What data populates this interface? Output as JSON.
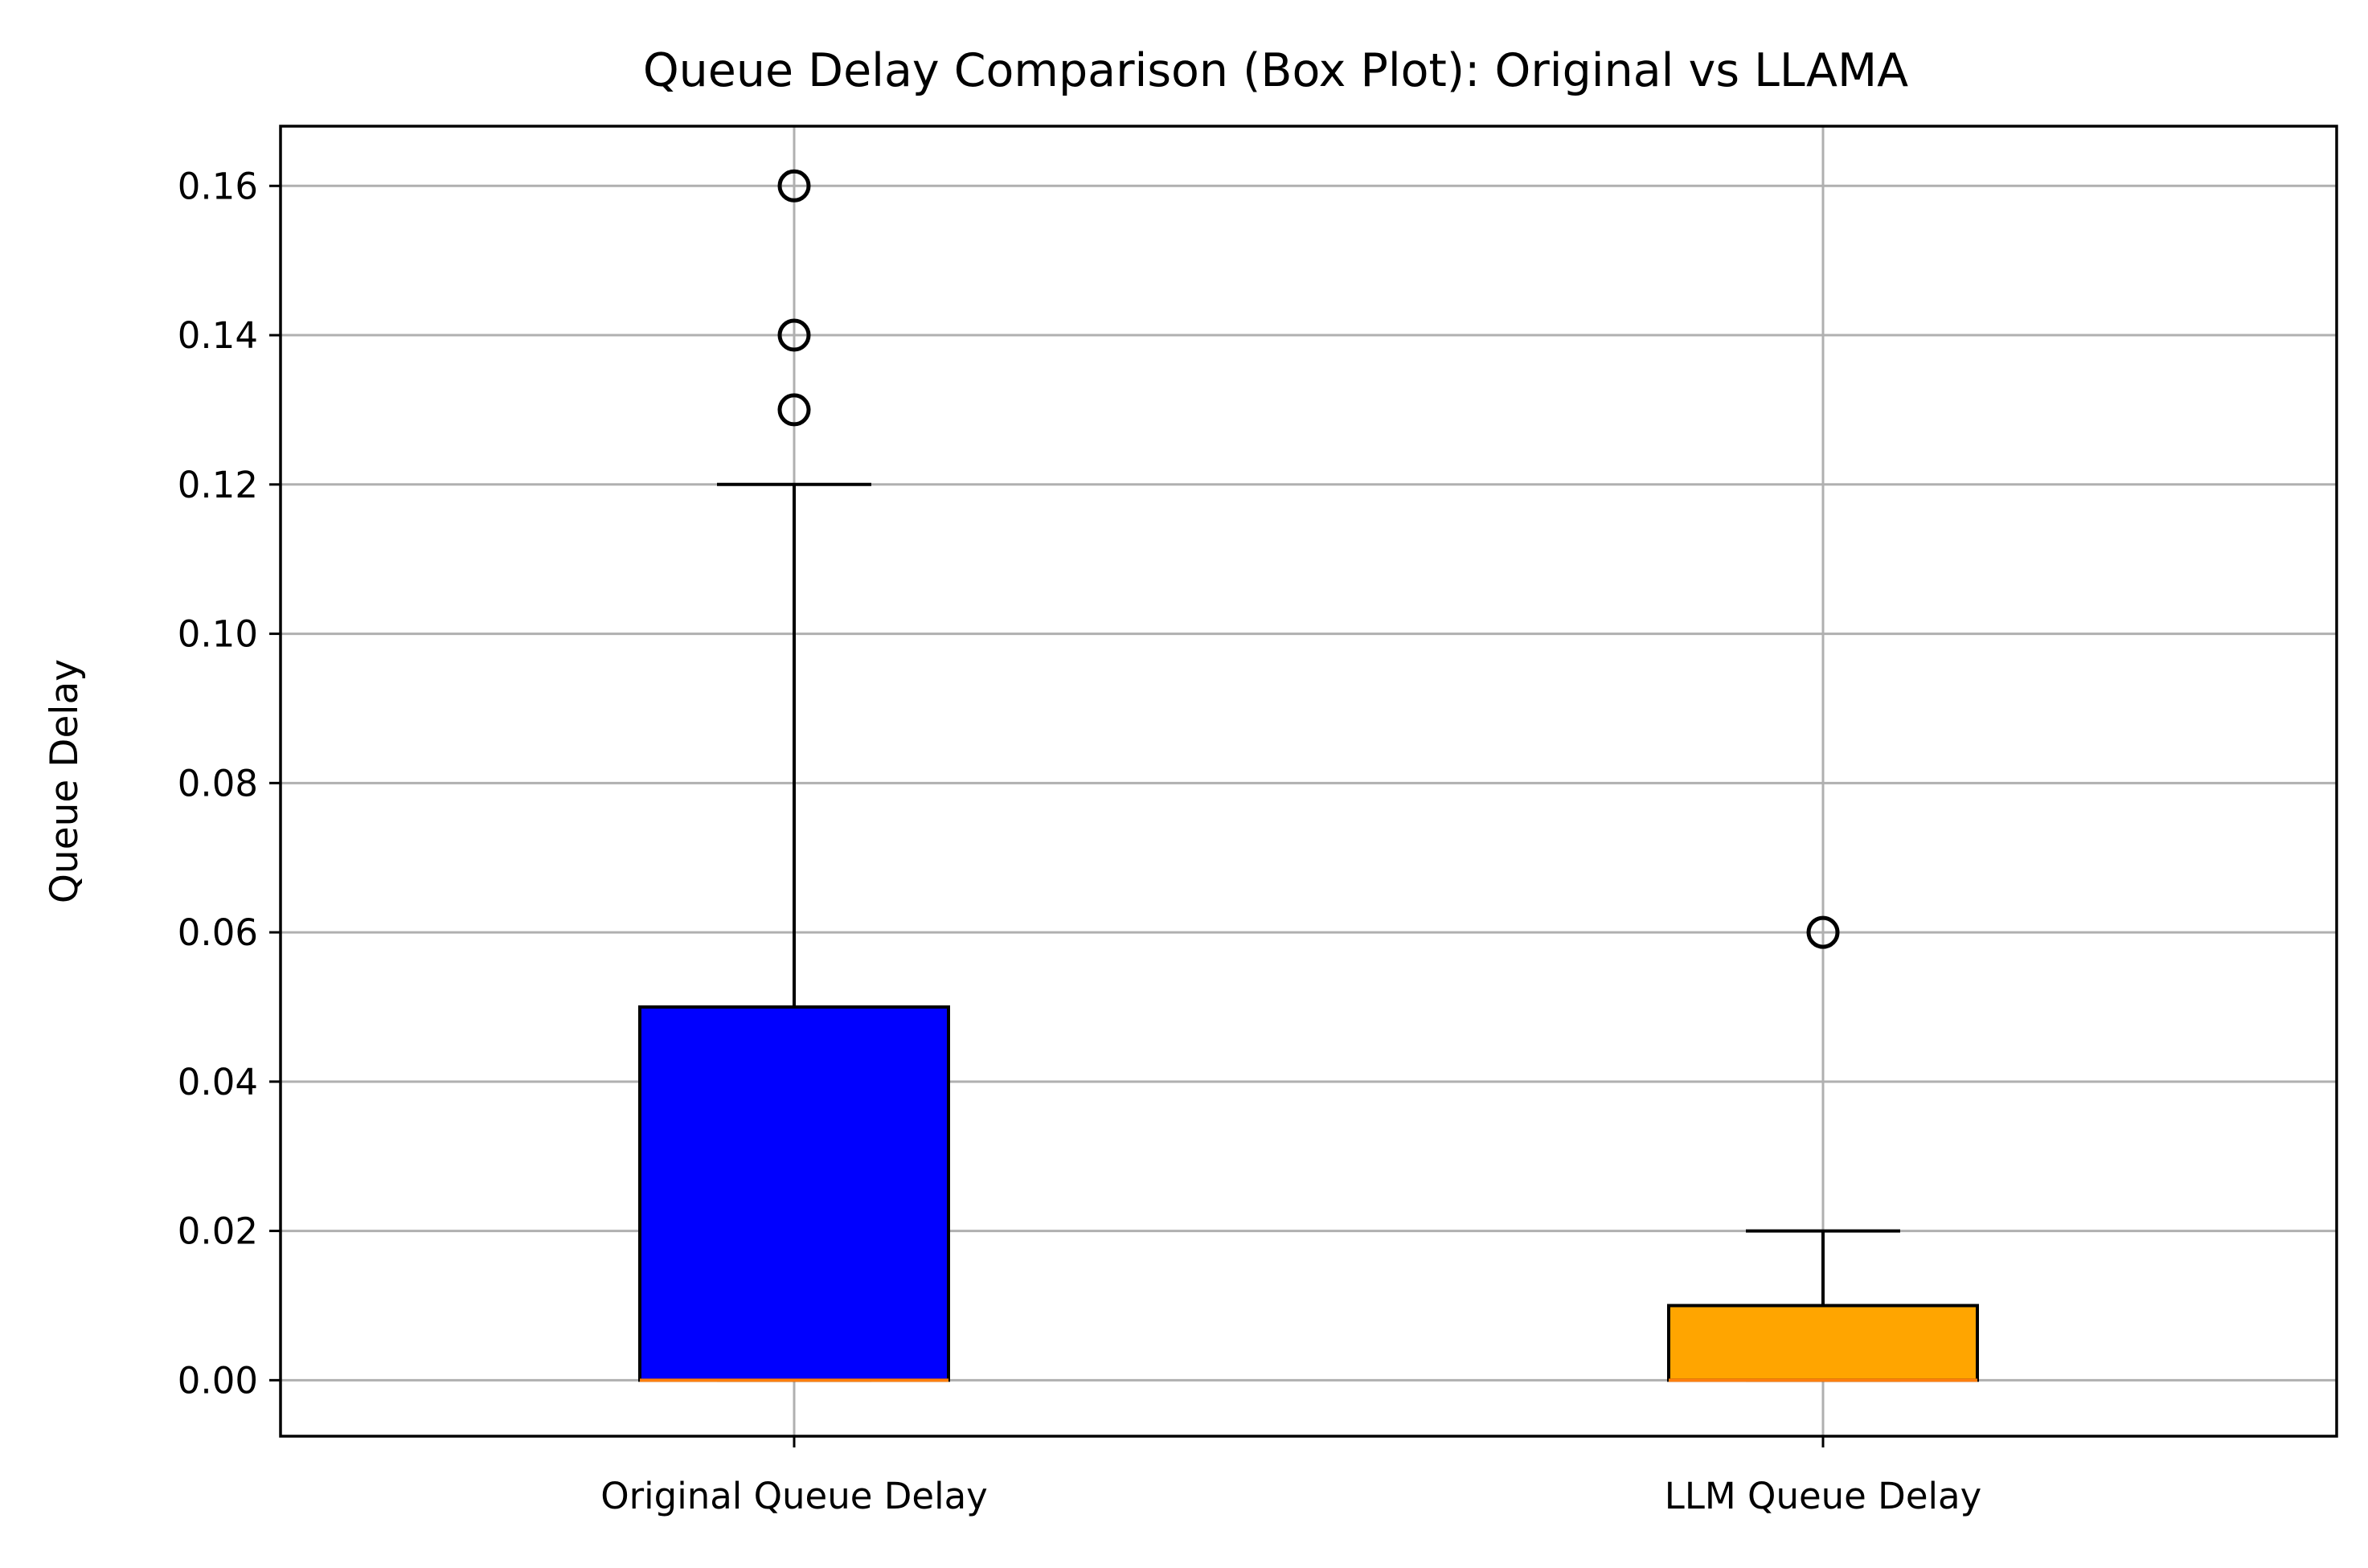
{
  "chart_data": {
    "type": "box",
    "title": "Queue Delay Comparison (Box Plot): Original vs LLAMA",
    "xlabel": "",
    "ylabel": "Queue Delay",
    "ylim": [
      -0.0075,
      0.168
    ],
    "yticks": [
      "0.00",
      "0.02",
      "0.04",
      "0.06",
      "0.08",
      "0.10",
      "0.12",
      "0.14",
      "0.16"
    ],
    "grid": true,
    "categories": [
      "Original Queue Delay",
      "LLM Queue Delay"
    ],
    "boxes": [
      {
        "label": "Original Queue Delay",
        "q1": 0.0,
        "median": 0.0,
        "q3": 0.05,
        "whisker_low": 0.0,
        "whisker_high": 0.12,
        "outliers": [
          0.13,
          0.14,
          0.16
        ],
        "color": "#0000ff"
      },
      {
        "label": "LLM Queue Delay",
        "q1": 0.0,
        "median": 0.0,
        "q3": 0.01,
        "whisker_low": 0.0,
        "whisker_high": 0.02,
        "outliers": [
          0.06
        ],
        "color": "#ffa500"
      }
    ],
    "median_color": "#ff7f0e",
    "grid_color": "#b0b0b0"
  }
}
